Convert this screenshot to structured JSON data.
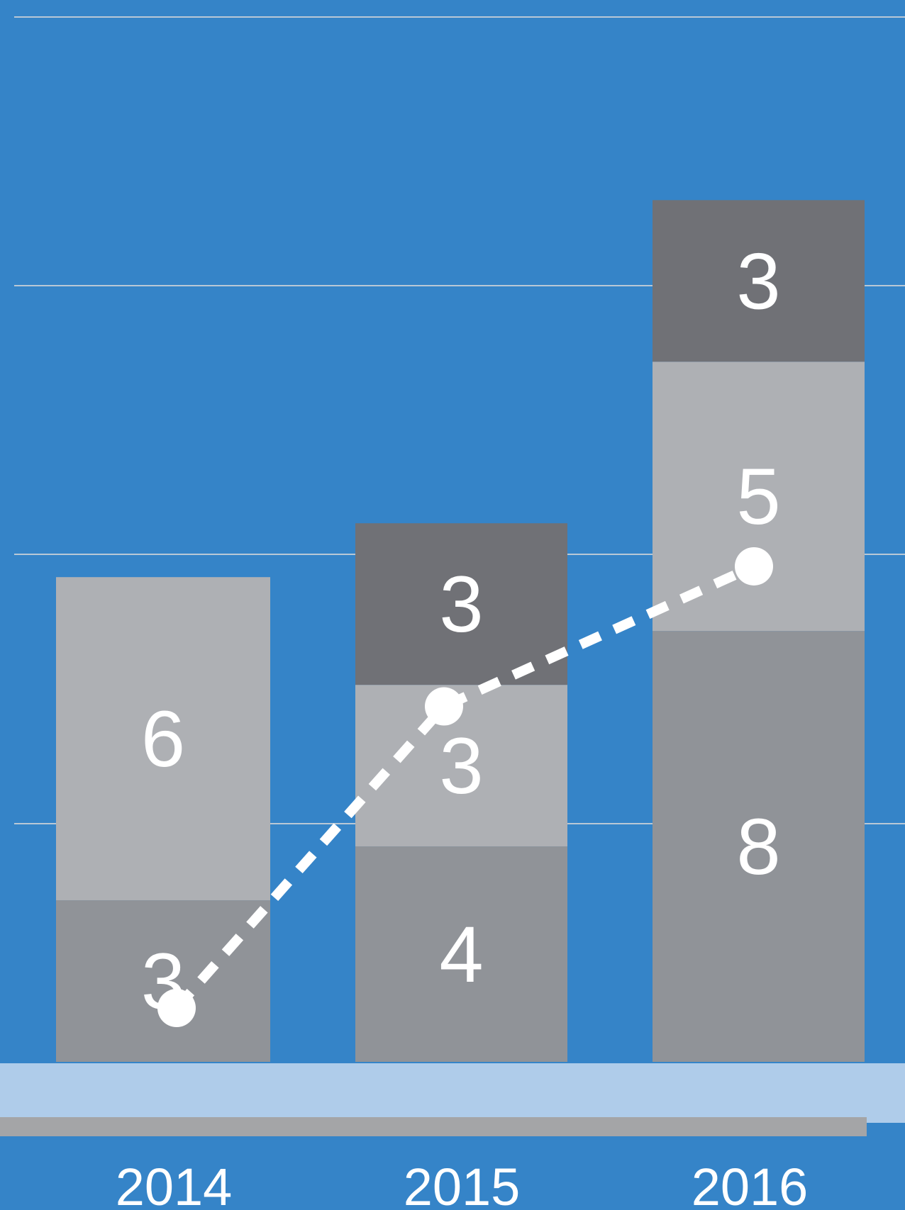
{
  "colors": {
    "background": "#3584C8",
    "gridline": "#B9C8D6",
    "segment_bottom": "#909398",
    "segment_middle": "#AEB0B4",
    "segment_top": "#707176",
    "baseline_band": "#AFCCEA",
    "baseline_bar": "#A4A5A7",
    "trend_line": "#FFFFFF"
  },
  "chart_data": {
    "type": "bar",
    "stacked": true,
    "categories": [
      "2014",
      "2015",
      "2016"
    ],
    "series": [
      {
        "values": [
          3,
          4,
          8
        ]
      },
      {
        "values": [
          6,
          3,
          5
        ]
      },
      {
        "values": [
          null,
          3,
          3
        ]
      }
    ],
    "data_labels": [
      [
        "3",
        "6",
        null
      ],
      [
        "4",
        "3",
        "3"
      ],
      [
        "8",
        "5",
        "3"
      ]
    ],
    "trend": {
      "style": "dashed-with-markers",
      "values": [
        1,
        6.6,
        9.2
      ]
    },
    "ylim": [
      0,
      19.4
    ],
    "grid": true,
    "legend": "none"
  }
}
